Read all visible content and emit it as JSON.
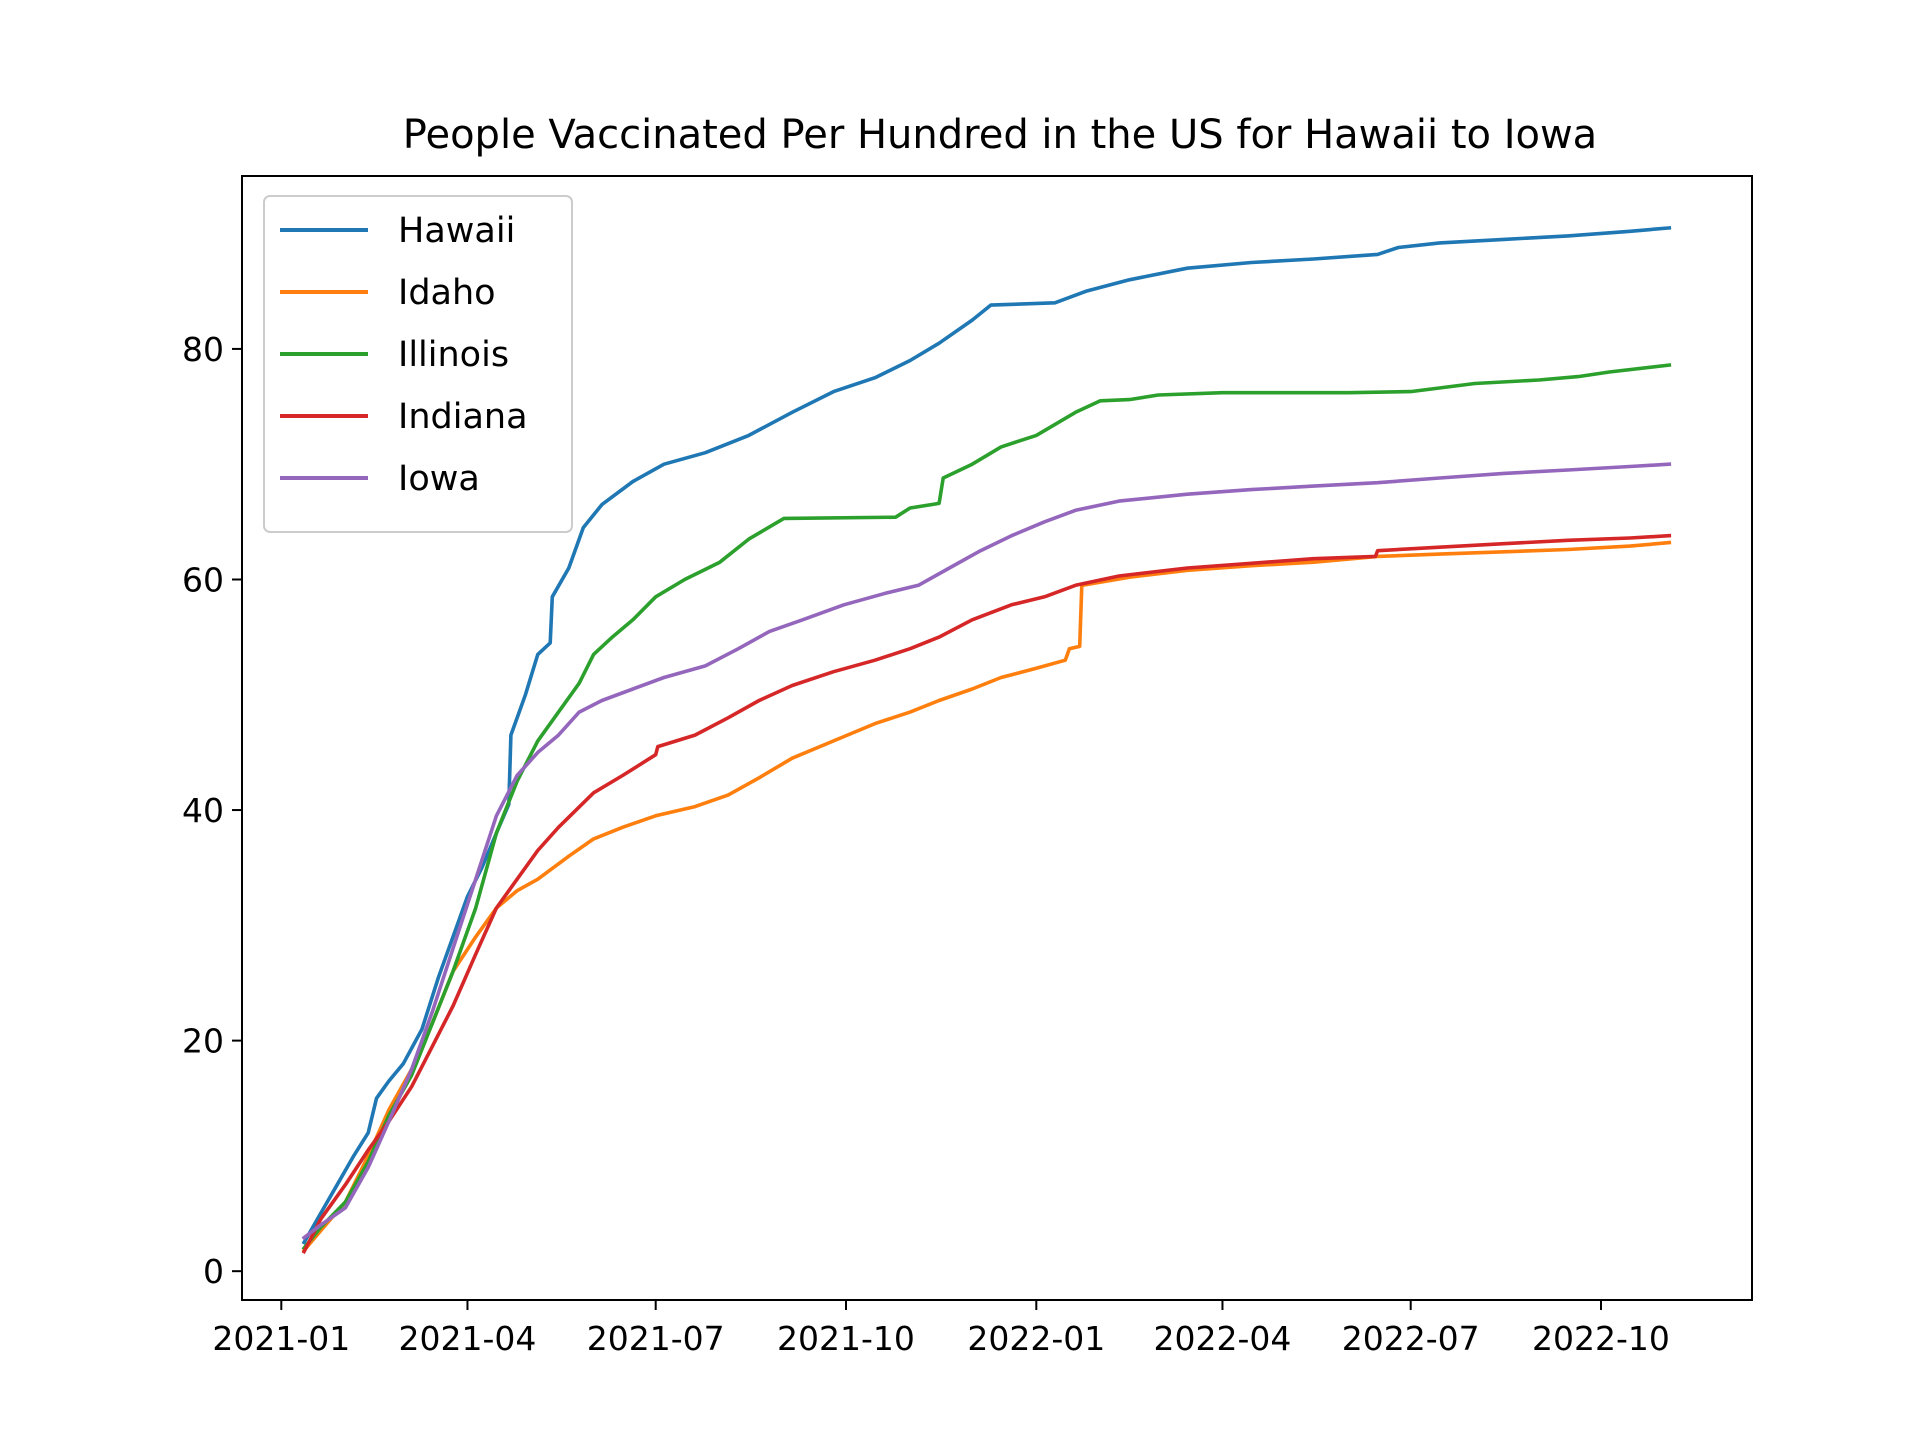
{
  "chart_data": {
    "type": "line",
    "title": "People Vaccinated Per Hundred in the US for Hawaii to Iowa",
    "xlabel": "",
    "ylabel": "",
    "x_range": [
      "2020-12-13",
      "2022-12-13"
    ],
    "ylim": [
      -2.5,
      95
    ],
    "x_ticks": [
      "2021-01",
      "2021-04",
      "2021-07",
      "2021-10",
      "2022-01",
      "2022-04",
      "2022-07",
      "2022-10"
    ],
    "y_ticks": [
      0,
      20,
      40,
      60,
      80
    ],
    "grid": false,
    "legend_position": "upper-left",
    "series": [
      {
        "name": "Hawaii",
        "color": "#1f77b4",
        "points": [
          [
            "2021-01-12",
            2.5
          ],
          [
            "2021-01-20",
            5.0
          ],
          [
            "2021-01-28",
            7.5
          ],
          [
            "2021-02-05",
            10.0
          ],
          [
            "2021-02-12",
            12.0
          ],
          [
            "2021-02-16",
            15.0
          ],
          [
            "2021-02-22",
            16.5
          ],
          [
            "2021-03-01",
            18.0
          ],
          [
            "2021-03-10",
            21.0
          ],
          [
            "2021-03-18",
            25.5
          ],
          [
            "2021-03-25",
            29.0
          ],
          [
            "2021-04-01",
            32.5
          ],
          [
            "2021-04-08",
            35.0
          ],
          [
            "2021-04-15",
            38.0
          ],
          [
            "2021-04-21",
            40.5
          ],
          [
            "2021-04-22",
            46.5
          ],
          [
            "2021-04-29",
            50.0
          ],
          [
            "2021-05-05",
            53.5
          ],
          [
            "2021-05-11",
            54.5
          ],
          [
            "2021-05-12",
            58.5
          ],
          [
            "2021-05-20",
            61.0
          ],
          [
            "2021-05-27",
            64.5
          ],
          [
            "2021-06-05",
            66.5
          ],
          [
            "2021-06-20",
            68.5
          ],
          [
            "2021-07-05",
            70.0
          ],
          [
            "2021-07-25",
            71.0
          ],
          [
            "2021-08-15",
            72.5
          ],
          [
            "2021-09-05",
            74.5
          ],
          [
            "2021-09-25",
            76.3
          ],
          [
            "2021-10-15",
            77.5
          ],
          [
            "2021-11-01",
            79.0
          ],
          [
            "2021-11-15",
            80.5
          ],
          [
            "2021-12-01",
            82.5
          ],
          [
            "2021-12-10",
            83.8
          ],
          [
            "2022-01-10",
            84.0
          ],
          [
            "2022-01-25",
            85.0
          ],
          [
            "2022-02-15",
            86.0
          ],
          [
            "2022-03-15",
            87.0
          ],
          [
            "2022-04-15",
            87.5
          ],
          [
            "2022-05-15",
            87.8
          ],
          [
            "2022-06-15",
            88.2
          ],
          [
            "2022-06-25",
            88.8
          ],
          [
            "2022-07-15",
            89.2
          ],
          [
            "2022-08-15",
            89.5
          ],
          [
            "2022-09-15",
            89.8
          ],
          [
            "2022-10-15",
            90.2
          ],
          [
            "2022-11-03",
            90.5
          ]
        ]
      },
      {
        "name": "Idaho",
        "color": "#ff7f0e",
        "points": [
          [
            "2021-01-12",
            1.8
          ],
          [
            "2021-01-20",
            3.5
          ],
          [
            "2021-02-01",
            6.0
          ],
          [
            "2021-02-12",
            10.0
          ],
          [
            "2021-02-22",
            14.0
          ],
          [
            "2021-03-05",
            17.5
          ],
          [
            "2021-03-15",
            21.5
          ],
          [
            "2021-03-25",
            26.0
          ],
          [
            "2021-04-05",
            29.0
          ],
          [
            "2021-04-15",
            31.5
          ],
          [
            "2021-04-25",
            33.0
          ],
          [
            "2021-05-05",
            34.0
          ],
          [
            "2021-05-20",
            36.0
          ],
          [
            "2021-06-01",
            37.5
          ],
          [
            "2021-06-15",
            38.5
          ],
          [
            "2021-07-01",
            39.5
          ],
          [
            "2021-07-20",
            40.3
          ],
          [
            "2021-08-05",
            41.3
          ],
          [
            "2021-08-20",
            42.8
          ],
          [
            "2021-09-05",
            44.5
          ],
          [
            "2021-09-25",
            46.0
          ],
          [
            "2021-10-15",
            47.5
          ],
          [
            "2021-11-01",
            48.5
          ],
          [
            "2021-11-15",
            49.5
          ],
          [
            "2021-12-01",
            50.5
          ],
          [
            "2021-12-15",
            51.5
          ],
          [
            "2022-01-01",
            52.3
          ],
          [
            "2022-01-15",
            53.0
          ],
          [
            "2022-01-17",
            54.0
          ],
          [
            "2022-01-22",
            54.2
          ],
          [
            "2022-01-23",
            59.5
          ],
          [
            "2022-02-15",
            60.2
          ],
          [
            "2022-03-15",
            60.8
          ],
          [
            "2022-04-15",
            61.2
          ],
          [
            "2022-05-15",
            61.5
          ],
          [
            "2022-06-15",
            62.0
          ],
          [
            "2022-07-15",
            62.2
          ],
          [
            "2022-08-15",
            62.4
          ],
          [
            "2022-09-15",
            62.6
          ],
          [
            "2022-10-15",
            62.9
          ],
          [
            "2022-11-03",
            63.2
          ]
        ]
      },
      {
        "name": "Illinois",
        "color": "#2ca02c",
        "points": [
          [
            "2021-01-12",
            2.0
          ],
          [
            "2021-01-20",
            3.8
          ],
          [
            "2021-02-01",
            6.0
          ],
          [
            "2021-02-12",
            9.5
          ],
          [
            "2021-02-22",
            13.5
          ],
          [
            "2021-03-05",
            17.0
          ],
          [
            "2021-03-15",
            21.5
          ],
          [
            "2021-03-25",
            26.0
          ],
          [
            "2021-04-05",
            31.5
          ],
          [
            "2021-04-15",
            38.0
          ],
          [
            "2021-04-25",
            42.5
          ],
          [
            "2021-05-05",
            46.0
          ],
          [
            "2021-05-15",
            48.5
          ],
          [
            "2021-05-25",
            51.0
          ],
          [
            "2021-06-01",
            53.5
          ],
          [
            "2021-06-10",
            55.0
          ],
          [
            "2021-06-20",
            56.5
          ],
          [
            "2021-07-01",
            58.5
          ],
          [
            "2021-07-15",
            60.0
          ],
          [
            "2021-08-01",
            61.5
          ],
          [
            "2021-08-15",
            63.5
          ],
          [
            "2021-09-01",
            65.3
          ],
          [
            "2021-10-25",
            65.4
          ],
          [
            "2021-11-01",
            66.2
          ],
          [
            "2021-11-15",
            66.6
          ],
          [
            "2021-11-17",
            68.8
          ],
          [
            "2021-12-01",
            70.0
          ],
          [
            "2021-12-15",
            71.5
          ],
          [
            "2022-01-01",
            72.5
          ],
          [
            "2022-01-20",
            74.5
          ],
          [
            "2022-02-01",
            75.5
          ],
          [
            "2022-02-15",
            75.6
          ],
          [
            "2022-03-01",
            76.0
          ],
          [
            "2022-04-01",
            76.2
          ],
          [
            "2022-06-01",
            76.2
          ],
          [
            "2022-07-01",
            76.3
          ],
          [
            "2022-08-01",
            77.0
          ],
          [
            "2022-09-01",
            77.3
          ],
          [
            "2022-09-20",
            77.6
          ],
          [
            "2022-10-05",
            78.0
          ],
          [
            "2022-11-03",
            78.6
          ]
        ]
      },
      {
        "name": "Indiana",
        "color": "#d62728",
        "points": [
          [
            "2021-01-12",
            1.7
          ],
          [
            "2021-01-20",
            4.5
          ],
          [
            "2021-02-01",
            7.5
          ],
          [
            "2021-02-12",
            10.5
          ],
          [
            "2021-02-22",
            13.0
          ],
          [
            "2021-03-05",
            16.0
          ],
          [
            "2021-03-15",
            19.5
          ],
          [
            "2021-03-25",
            23.0
          ],
          [
            "2021-04-05",
            27.5
          ],
          [
            "2021-04-15",
            31.5
          ],
          [
            "2021-04-25",
            34.0
          ],
          [
            "2021-05-05",
            36.5
          ],
          [
            "2021-05-15",
            38.5
          ],
          [
            "2021-06-01",
            41.5
          ],
          [
            "2021-06-15",
            43.0
          ],
          [
            "2021-07-01",
            44.8
          ],
          [
            "2021-07-02",
            45.5
          ],
          [
            "2021-07-20",
            46.5
          ],
          [
            "2021-08-05",
            48.0
          ],
          [
            "2021-08-20",
            49.5
          ],
          [
            "2021-09-05",
            50.8
          ],
          [
            "2021-09-25",
            52.0
          ],
          [
            "2021-10-15",
            53.0
          ],
          [
            "2021-11-01",
            54.0
          ],
          [
            "2021-11-15",
            55.0
          ],
          [
            "2021-12-01",
            56.5
          ],
          [
            "2021-12-20",
            57.8
          ],
          [
            "2022-01-05",
            58.5
          ],
          [
            "2022-01-20",
            59.5
          ],
          [
            "2022-02-10",
            60.3
          ],
          [
            "2022-03-15",
            61.0
          ],
          [
            "2022-04-15",
            61.4
          ],
          [
            "2022-05-15",
            61.8
          ],
          [
            "2022-06-14",
            62.0
          ],
          [
            "2022-06-15",
            62.5
          ],
          [
            "2022-07-15",
            62.8
          ],
          [
            "2022-08-15",
            63.1
          ],
          [
            "2022-09-15",
            63.4
          ],
          [
            "2022-10-15",
            63.6
          ],
          [
            "2022-11-03",
            63.8
          ]
        ]
      },
      {
        "name": "Iowa",
        "color": "#9467bd",
        "points": [
          [
            "2021-01-12",
            2.9
          ],
          [
            "2021-01-20",
            4.0
          ],
          [
            "2021-02-01",
            5.5
          ],
          [
            "2021-02-12",
            9.0
          ],
          [
            "2021-02-22",
            13.0
          ],
          [
            "2021-03-05",
            17.5
          ],
          [
            "2021-03-15",
            22.5
          ],
          [
            "2021-03-25",
            28.0
          ],
          [
            "2021-04-05",
            34.0
          ],
          [
            "2021-04-15",
            39.5
          ],
          [
            "2021-04-25",
            43.0
          ],
          [
            "2021-05-05",
            45.0
          ],
          [
            "2021-05-15",
            46.5
          ],
          [
            "2021-05-25",
            48.5
          ],
          [
            "2021-06-05",
            49.5
          ],
          [
            "2021-06-20",
            50.5
          ],
          [
            "2021-07-05",
            51.5
          ],
          [
            "2021-07-25",
            52.5
          ],
          [
            "2021-08-10",
            54.0
          ],
          [
            "2021-08-25",
            55.5
          ],
          [
            "2021-09-10",
            56.5
          ],
          [
            "2021-09-30",
            57.8
          ],
          [
            "2021-10-20",
            58.8
          ],
          [
            "2021-11-05",
            59.5
          ],
          [
            "2021-11-20",
            61.0
          ],
          [
            "2021-12-05",
            62.5
          ],
          [
            "2021-12-20",
            63.8
          ],
          [
            "2022-01-05",
            65.0
          ],
          [
            "2022-01-20",
            66.0
          ],
          [
            "2022-02-10",
            66.8
          ],
          [
            "2022-03-15",
            67.4
          ],
          [
            "2022-04-15",
            67.8
          ],
          [
            "2022-05-15",
            68.1
          ],
          [
            "2022-06-15",
            68.4
          ],
          [
            "2022-07-15",
            68.8
          ],
          [
            "2022-08-15",
            69.2
          ],
          [
            "2022-09-15",
            69.5
          ],
          [
            "2022-10-15",
            69.8
          ],
          [
            "2022-11-03",
            70.0
          ]
        ]
      }
    ]
  }
}
